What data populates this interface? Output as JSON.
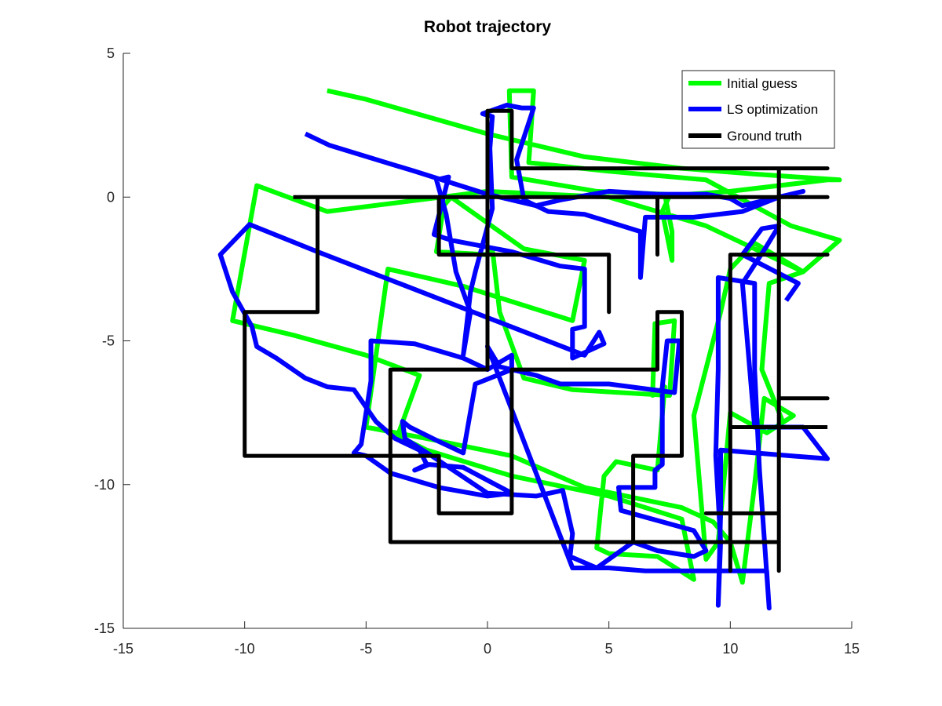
{
  "chart_data": {
    "type": "line",
    "title": "Robot trajectory",
    "xlabel": "",
    "ylabel": "",
    "xlim": [
      -15,
      15
    ],
    "ylim": [
      -15,
      5
    ],
    "xticks": [
      -15,
      -10,
      -5,
      0,
      5,
      10,
      15
    ],
    "yticks": [
      -15,
      -10,
      -5,
      0,
      5
    ],
    "grid": false,
    "legend_position": "top-right",
    "series": [
      {
        "name": "Initial guess",
        "color": "#00ff00",
        "points": [
          [
            -6.6,
            3.7
          ],
          [
            -5,
            3.4
          ],
          [
            0,
            2.2
          ],
          [
            4,
            1.4
          ],
          [
            8,
            1.0
          ],
          [
            11,
            0.8
          ],
          [
            14.5,
            0.6
          ],
          [
            14,
            0.6
          ],
          [
            10,
            0.2
          ],
          [
            7.5,
            0.05
          ],
          [
            7.2,
            -0.5
          ],
          [
            7.6,
            -2.2
          ],
          [
            7.6,
            -1.2
          ],
          [
            7.3,
            0.1
          ],
          [
            4.5,
            0.2
          ],
          [
            1,
            0.7
          ],
          [
            0.9,
            3.7
          ],
          [
            1.9,
            3.7
          ],
          [
            1.7,
            1.2
          ],
          [
            5,
            0.9
          ],
          [
            9,
            0.6
          ],
          [
            12.5,
            -1.0
          ],
          [
            14.5,
            -1.5
          ],
          [
            13,
            -2.6
          ],
          [
            9,
            -1.0
          ],
          [
            5,
            0.0
          ],
          [
            0,
            0.2
          ],
          [
            -6.6,
            -0.5
          ],
          [
            -9.5,
            0.4
          ],
          [
            -10.5,
            -4.3
          ],
          [
            -8,
            -4.8
          ],
          [
            -5,
            -5.5
          ],
          [
            -2.8,
            -6.2
          ],
          [
            -3.7,
            -8.3
          ],
          [
            -2.5,
            -8.8
          ],
          [
            1,
            -9.7
          ],
          [
            5,
            -10.4
          ],
          [
            8,
            -11.2
          ],
          [
            8.5,
            -13.3
          ],
          [
            7,
            -12.5
          ],
          [
            5,
            -12.4
          ],
          [
            4.5,
            -12.2
          ],
          [
            4.8,
            -9.7
          ],
          [
            5.3,
            -9.2
          ],
          [
            7,
            -9.5
          ],
          [
            7.3,
            -6.6
          ],
          [
            6.8,
            -6.9
          ],
          [
            6.9,
            -4.4
          ],
          [
            7.7,
            -4.3
          ],
          [
            7.5,
            -6.9
          ],
          [
            3.5,
            -6.7
          ],
          [
            1.5,
            -6.3
          ],
          [
            0.5,
            -4.0
          ],
          [
            0.2,
            -1.8
          ],
          [
            0,
            -2.0
          ],
          [
            -2.1,
            -1.9
          ],
          [
            -1.8,
            -0.3
          ],
          [
            -1.5,
            0.0
          ],
          [
            1.5,
            -1.8
          ],
          [
            4,
            -2.2
          ],
          [
            4,
            -2.2
          ],
          [
            3.5,
            -4.3
          ],
          [
            -1,
            -3.1
          ],
          [
            -4.1,
            -2.5
          ],
          [
            -4.1,
            -2.5
          ],
          [
            -5,
            -8.0
          ],
          [
            -2.5,
            -8.4
          ],
          [
            1,
            -9.0
          ],
          [
            4,
            -10.1
          ],
          [
            8,
            -10.8
          ],
          [
            9.3,
            -11.3
          ],
          [
            10,
            -12.0
          ],
          [
            10.5,
            -13.4
          ],
          [
            11,
            -10.0
          ],
          [
            11.4,
            -7.0
          ],
          [
            12.6,
            -7.6
          ],
          [
            11.5,
            -8.2
          ],
          [
            10,
            -7.5
          ],
          [
            9.5,
            -12.0
          ],
          [
            9,
            -12.6
          ],
          [
            8.5,
            -7.6
          ],
          [
            9.6,
            -4.0
          ],
          [
            10,
            -2.5
          ],
          [
            11,
            -1.6
          ],
          [
            13,
            -2.6
          ],
          [
            11.6,
            -3.0
          ],
          [
            11.3,
            -6.0
          ],
          [
            12.2,
            -7.9
          ]
        ]
      },
      {
        "name": "LS optimization",
        "color": "#0000ff",
        "points": [
          [
            -7.5,
            2.2
          ],
          [
            -6.5,
            1.8
          ],
          [
            -3,
            0.9
          ],
          [
            0,
            0.1
          ],
          [
            2,
            -0.3
          ],
          [
            3,
            -0.1
          ],
          [
            5,
            0.2
          ],
          [
            7,
            0.1
          ],
          [
            9,
            0.1
          ],
          [
            10,
            -0.05
          ],
          [
            10.5,
            -0.3
          ],
          [
            13,
            0.2
          ],
          [
            12,
            0.0
          ],
          [
            10.5,
            -0.5
          ],
          [
            8.5,
            -0.7
          ],
          [
            6.5,
            -0.7
          ],
          [
            6.3,
            -2.8
          ],
          [
            6.3,
            -1.2
          ],
          [
            4,
            -0.6
          ],
          [
            2.5,
            -0.5
          ],
          [
            1.5,
            -0.1
          ],
          [
            1.2,
            1.3
          ],
          [
            1.9,
            3.1
          ],
          [
            1.4,
            3.1
          ],
          [
            0.8,
            3.2
          ],
          [
            -0.2,
            2.9
          ],
          [
            0.2,
            2.8
          ],
          [
            0.1,
            1.7
          ],
          [
            0.2,
            -0.4
          ],
          [
            -0.5,
            -2.6
          ],
          [
            -0.7,
            -3.3
          ],
          [
            -1.0,
            -5.5
          ],
          [
            -0.7,
            -4.0
          ],
          [
            -1.3,
            -2.6
          ],
          [
            -1.7,
            -0.6
          ],
          [
            -2.1,
            0.6
          ],
          [
            -1.6,
            0.7
          ],
          [
            -2.2,
            -1.3
          ],
          [
            -1.5,
            -1.5
          ],
          [
            1,
            -1.9
          ],
          [
            3,
            -2.4
          ],
          [
            4,
            -2.5
          ],
          [
            4,
            -4.5
          ],
          [
            3.5,
            -4.6
          ],
          [
            3.5,
            -5.6
          ],
          [
            4.8,
            -5.1
          ],
          [
            4.6,
            -4.7
          ],
          [
            4.0,
            -5.5
          ],
          [
            -7,
            -1.9
          ],
          [
            -9.8,
            -0.95
          ],
          [
            -11,
            -2.0
          ],
          [
            -10.5,
            -3.3
          ],
          [
            -9.7,
            -4.5
          ],
          [
            -9.5,
            -5.2
          ],
          [
            -8.7,
            -5.6
          ],
          [
            -7.5,
            -6.3
          ],
          [
            -6.6,
            -6.6
          ],
          [
            -5.5,
            -6.7
          ],
          [
            -4.6,
            -7.8
          ],
          [
            -3.8,
            -8.4
          ],
          [
            -2.8,
            -8.8
          ],
          [
            -2.5,
            -9.3
          ],
          [
            -3,
            -9.5
          ],
          [
            -2.4,
            -9.3
          ],
          [
            -1,
            -9.4
          ],
          [
            1,
            -10.3
          ],
          [
            0,
            -10.4
          ],
          [
            -2,
            -10.1
          ],
          [
            -4,
            -9.6
          ],
          [
            -5,
            -9.0
          ],
          [
            -5.5,
            -8.9
          ],
          [
            -5.2,
            -8.6
          ],
          [
            -4.8,
            -6.4
          ],
          [
            -4.8,
            -5.0
          ],
          [
            -3,
            -5.1
          ],
          [
            -1,
            -5.6
          ],
          [
            0,
            -6.0
          ],
          [
            1,
            -5.5
          ],
          [
            1.0,
            -6.0
          ],
          [
            -0.5,
            -6.5
          ],
          [
            -1,
            -8.9
          ],
          [
            -2,
            -8.5
          ],
          [
            -3.2,
            -8.0
          ],
          [
            -3.5,
            -7.8
          ],
          [
            -3.4,
            -8.4
          ],
          [
            -2.3,
            -9.0
          ],
          [
            0,
            -10.3
          ],
          [
            2,
            -10.4
          ],
          [
            3.1,
            -10.2
          ],
          [
            3.5,
            -11.7
          ],
          [
            3.4,
            -12.5
          ],
          [
            4.5,
            -12.9
          ],
          [
            5.5,
            -12.3
          ],
          [
            6,
            -12.0
          ],
          [
            7,
            -12.3
          ],
          [
            8.5,
            -12.5
          ],
          [
            9.0,
            -12.3
          ],
          [
            8.5,
            -11.6
          ],
          [
            5.5,
            -10.9
          ],
          [
            5.4,
            -10.1
          ],
          [
            6.9,
            -10.1
          ],
          [
            6.9,
            -9.5
          ],
          [
            7.2,
            -9.3
          ],
          [
            7.2,
            -6.6
          ],
          [
            7.4,
            -5.0
          ],
          [
            7.9,
            -5.0
          ],
          [
            7.7,
            -6.8
          ],
          [
            5,
            -6.5
          ],
          [
            3,
            -6.5
          ],
          [
            2,
            -6.2
          ],
          [
            0.5,
            -5.9
          ],
          [
            0,
            -5.2
          ],
          [
            3.5,
            -12.9
          ],
          [
            5,
            -12.9
          ],
          [
            6.5,
            -13.0
          ],
          [
            9,
            -13.0
          ],
          [
            11.5,
            -13.0
          ],
          [
            11.6,
            -14.3
          ],
          [
            11.2,
            -9.5
          ],
          [
            11.0,
            -6.0
          ],
          [
            11.0,
            -3.0
          ],
          [
            9.5,
            -2.8
          ],
          [
            9.5,
            -3.3
          ],
          [
            9.5,
            -6.0
          ],
          [
            9.4,
            -9.0
          ],
          [
            9.6,
            -12.0
          ],
          [
            9.5,
            -14.2
          ],
          [
            9.6,
            -11.0
          ],
          [
            9.6,
            -8.8
          ],
          [
            12.5,
            -9.0
          ],
          [
            14,
            -9.1
          ],
          [
            13,
            -8.0
          ],
          [
            11,
            -8.0
          ],
          [
            10.5,
            -3.0
          ],
          [
            11.5,
            -1.7
          ],
          [
            12,
            -1.0
          ],
          [
            11.3,
            -1.1
          ],
          [
            10.5,
            -2.0
          ],
          [
            12.8,
            -3.0
          ],
          [
            12.3,
            -3.6
          ]
        ]
      },
      {
        "name": "Ground truth",
        "color": "#000000",
        "points": [
          [
            -8,
            0
          ],
          [
            14,
            0
          ],
          [
            7,
            0
          ],
          [
            7,
            -2
          ],
          [
            7,
            0
          ],
          [
            0,
            0
          ],
          [
            0,
            3
          ],
          [
            1,
            3
          ],
          [
            1,
            1
          ],
          [
            14,
            1
          ],
          [
            12,
            1
          ],
          [
            12,
            -13
          ],
          [
            12,
            -12
          ],
          [
            6,
            -12
          ],
          [
            6,
            -9
          ],
          [
            8,
            -9
          ],
          [
            8,
            -4
          ],
          [
            7,
            -4
          ],
          [
            7,
            -6
          ],
          [
            1,
            -6
          ],
          [
            1,
            -11
          ],
          [
            -2,
            -11
          ],
          [
            -2,
            -9
          ],
          [
            -10,
            -9
          ],
          [
            -10,
            -4
          ],
          [
            -7,
            -4
          ],
          [
            -7,
            0
          ],
          [
            0,
            0
          ],
          [
            0,
            -2
          ],
          [
            -2,
            -2
          ],
          [
            -2,
            0
          ],
          [
            -2,
            -2
          ],
          [
            5,
            -2
          ],
          [
            5,
            -4
          ],
          [
            5,
            -2
          ],
          [
            0,
            -2
          ],
          [
            0,
            -6
          ],
          [
            -4,
            -6
          ],
          [
            -4,
            -12
          ],
          [
            6,
            -12
          ],
          [
            10,
            -12
          ],
          [
            10,
            -13
          ],
          [
            10,
            -2
          ],
          [
            14,
            -2
          ],
          [
            12,
            -2
          ],
          [
            12,
            -8
          ],
          [
            10,
            -8
          ],
          [
            10,
            -11
          ],
          [
            12,
            -11
          ],
          [
            9,
            -11
          ],
          [
            10,
            -11
          ],
          [
            10,
            -8
          ],
          [
            12,
            -8
          ],
          [
            12,
            -7
          ],
          [
            14,
            -7
          ],
          [
            12,
            -7
          ],
          [
            12,
            -8
          ],
          [
            14,
            -8
          ]
        ]
      }
    ]
  }
}
